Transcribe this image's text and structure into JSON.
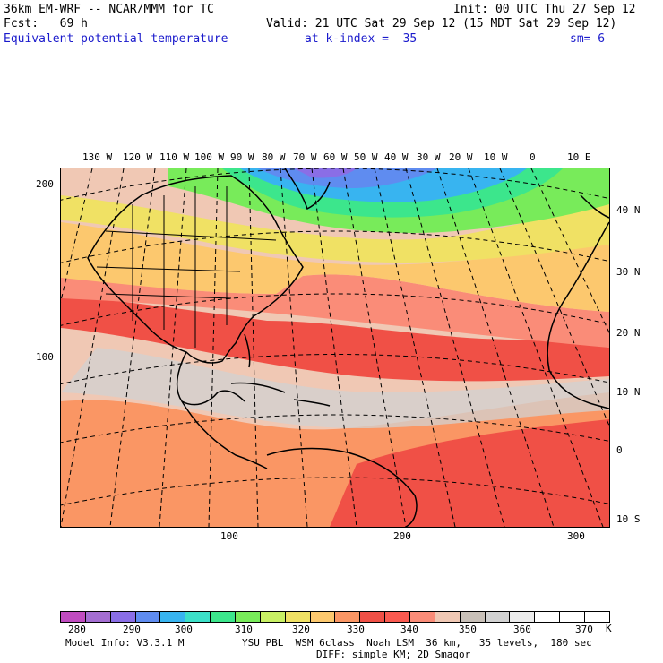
{
  "header": {
    "model_line": "36km EM-WRF -- NCAR/MMM for TC",
    "init_line": "Init: 00 UTC Thu 27 Sep 12",
    "fcst_line": "Fcst:   69 h",
    "valid_line": "Valid: 21 UTC Sat 29 Sep 12 (15 MDT Sat 29 Sep 12)",
    "field_name": "Equivalent potential temperature",
    "k_index": "at k-index =  35",
    "smoothing": "sm= 6"
  },
  "top_longitudes": [
    "130 W",
    "120 W",
    "110 W",
    "100 W",
    "90 W",
    "80 W",
    "70 W",
    "60 W",
    "50 W",
    "40 W",
    "30 W",
    "20 W",
    "10 W",
    "0",
    "10 E"
  ],
  "right_latitudes": [
    "40 N",
    "30 N",
    "20 N",
    "10 N",
    "0",
    "10 S"
  ],
  "left_ticks": [
    "200",
    "100"
  ],
  "bottom_ticks": [
    "100",
    "200",
    "300"
  ],
  "colorbar": {
    "colors": [
      "#c04cc0",
      "#a46ed2",
      "#8a6ee6",
      "#5f8cf0",
      "#38b4f0",
      "#3ce0c8",
      "#3ce68c",
      "#78eb5a",
      "#c8f064",
      "#f0e164",
      "#fcc86e",
      "#fa9664",
      "#f05046",
      "#fa5a50",
      "#fa8c78",
      "#f0c8b4",
      "#c8c0b8",
      "#d2d2d2",
      "#ececec",
      "#ffffff",
      "#ffffff",
      "#ffffff"
    ],
    "labels": [
      "280",
      "290",
      "300",
      "310",
      "320",
      "330",
      "340",
      "350",
      "360",
      "370"
    ],
    "unit": "K"
  },
  "footer": {
    "model_info": "Model Info: V3.3.1 M",
    "physics": "YSU PBL  WSM 6class  Noah LSM  36 km,   35 levels,  180 sec",
    "diffusion": "DIFF: simple KM; 2D Smagor"
  }
}
